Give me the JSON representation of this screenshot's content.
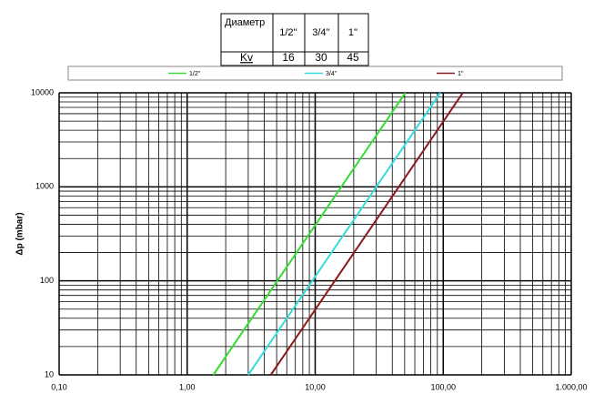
{
  "table": {
    "header": [
      "Диаметр",
      "1/2''",
      "3/4''",
      "1''"
    ],
    "rows": [
      [
        "Kv",
        16,
        30,
        45
      ]
    ]
  },
  "chart_data": {
    "type": "line",
    "log_x": true,
    "log_y": true,
    "grid": true,
    "minor_grid": true,
    "legend": "top",
    "ylabel": "Δp (mbar)",
    "xlim": [
      0.1,
      1000
    ],
    "xticks": [
      {
        "value": 0.1,
        "label": "0,10"
      },
      {
        "value": 1,
        "label": "1,00"
      },
      {
        "value": 10,
        "label": "10,00"
      },
      {
        "value": 100,
        "label": "100,00"
      },
      {
        "value": 1000,
        "label": "1.000,00"
      }
    ],
    "ylim": [
      10,
      10000
    ],
    "yticks": [
      10,
      100,
      1000,
      10000
    ],
    "series": [
      {
        "name": "1/2''",
        "color": "#33dd33",
        "x": [
          1.6,
          50.6
        ],
        "values": [
          10,
          10000
        ]
      },
      {
        "name": "3/4''",
        "color": "#33dddd",
        "x": [
          3,
          94.9
        ],
        "values": [
          10,
          10000
        ]
      },
      {
        "name": "1''",
        "color": "#8b1a1a",
        "x": [
          4.5,
          142.3
        ],
        "values": [
          10,
          10000
        ]
      }
    ]
  }
}
